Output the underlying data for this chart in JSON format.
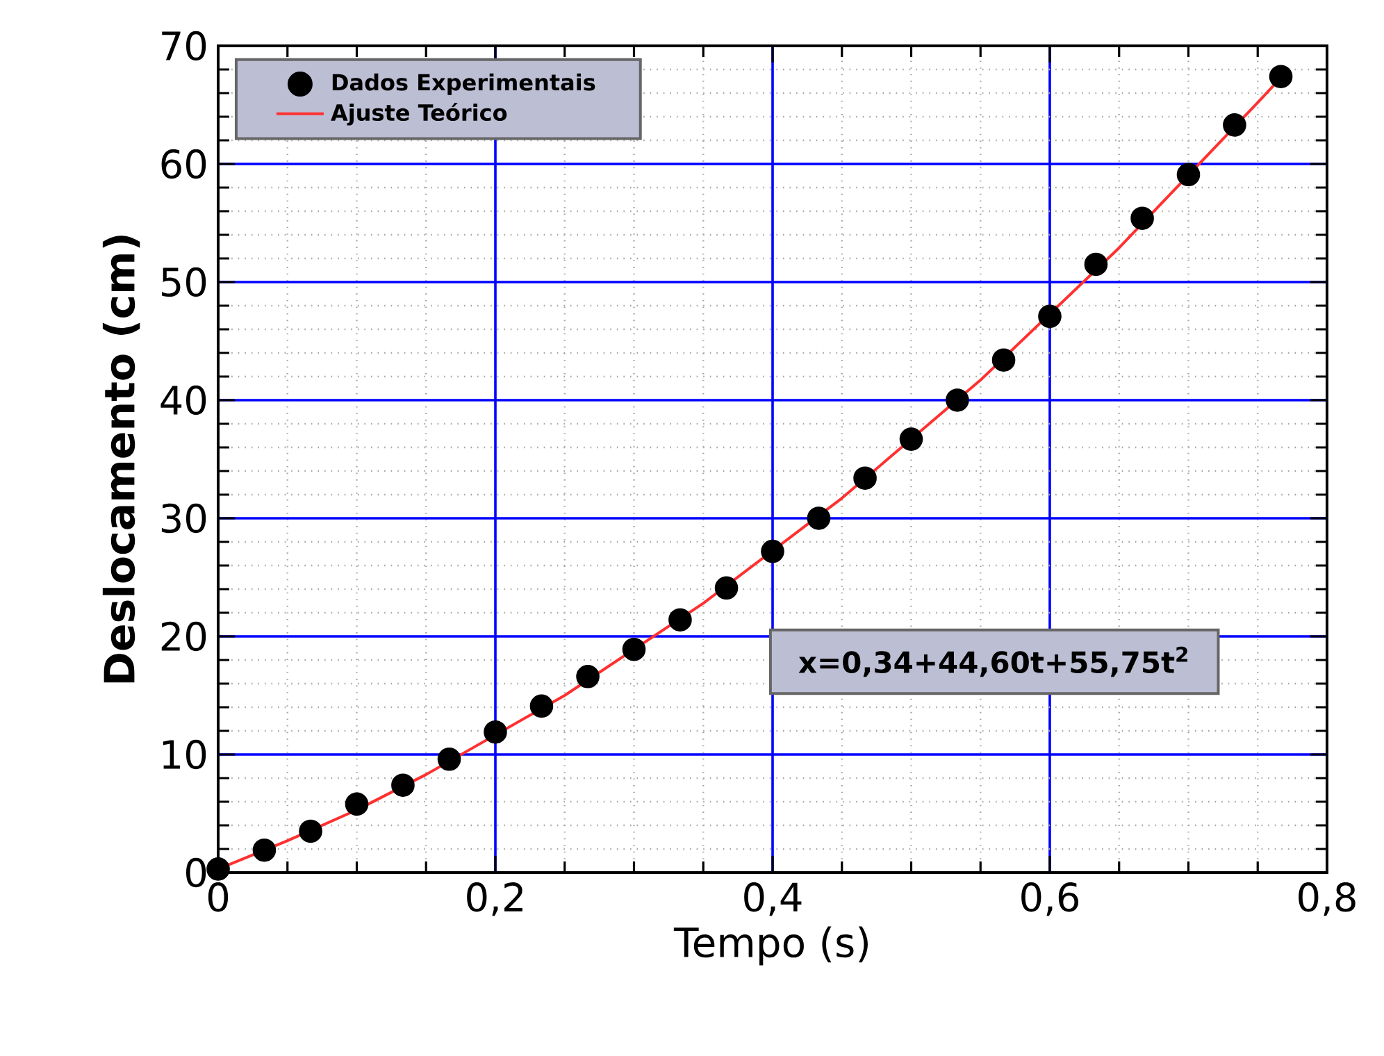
{
  "chart_data": {
    "type": "scatter",
    "xlabel": "Tempo (s)",
    "ylabel": "Deslocamento (cm)",
    "xlim": [
      0,
      0.8
    ],
    "ylim": [
      0,
      70
    ],
    "xticks": [
      0,
      {
        "value": 0.2,
        "label": "0,2"
      },
      {
        "value": 0.4,
        "label": "0,4"
      },
      {
        "value": 0.6,
        "label": "0,6"
      },
      {
        "value": 0.8,
        "label": "0,8"
      }
    ],
    "yticks": [
      0,
      10,
      20,
      30,
      40,
      50,
      60,
      70
    ],
    "grid": true,
    "legend": "top left",
    "annotations": [
      "x=0,34+44,60t+55,75t$^{2}$"
    ],
    "series": [
      {
        "name": "Dados Experimentais",
        "marker": "circle",
        "color": "#000000",
        "x": [
          0,
          0.0333,
          0.0667,
          0.1,
          0.1333,
          0.1667,
          0.2,
          0.2333,
          0.2667,
          0.3,
          0.3333,
          0.3667,
          0.4,
          0.4333,
          0.4667,
          0.5,
          0.5333,
          0.5667,
          0.6,
          0.6333,
          0.6667,
          0.7,
          0.7333,
          0.7667
        ],
        "values": [
          0.3,
          1.9,
          3.5,
          5.8,
          7.4,
          9.6,
          11.9,
          14.1,
          16.6,
          18.9,
          21.4,
          24.1,
          27.2,
          30.0,
          33.4,
          36.7,
          40.0,
          43.4,
          47.1,
          51.5,
          55.4,
          59.1,
          63.3,
          67.4
        ]
      },
      {
        "name": "Ajuste Teórico",
        "type": "line",
        "marker": "none",
        "color": "#ff3030",
        "x": [
          0,
          0.05,
          0.1,
          0.15,
          0.25,
          0.35,
          0.45,
          0.55,
          0.65,
          0.75,
          0.7667
        ],
        "values": [
          0.3,
          2.7,
          5.3,
          8.3,
          15.0,
          22.8,
          31.7,
          41.7,
          52.9,
          65.2,
          67.3
        ]
      }
    ]
  }
}
